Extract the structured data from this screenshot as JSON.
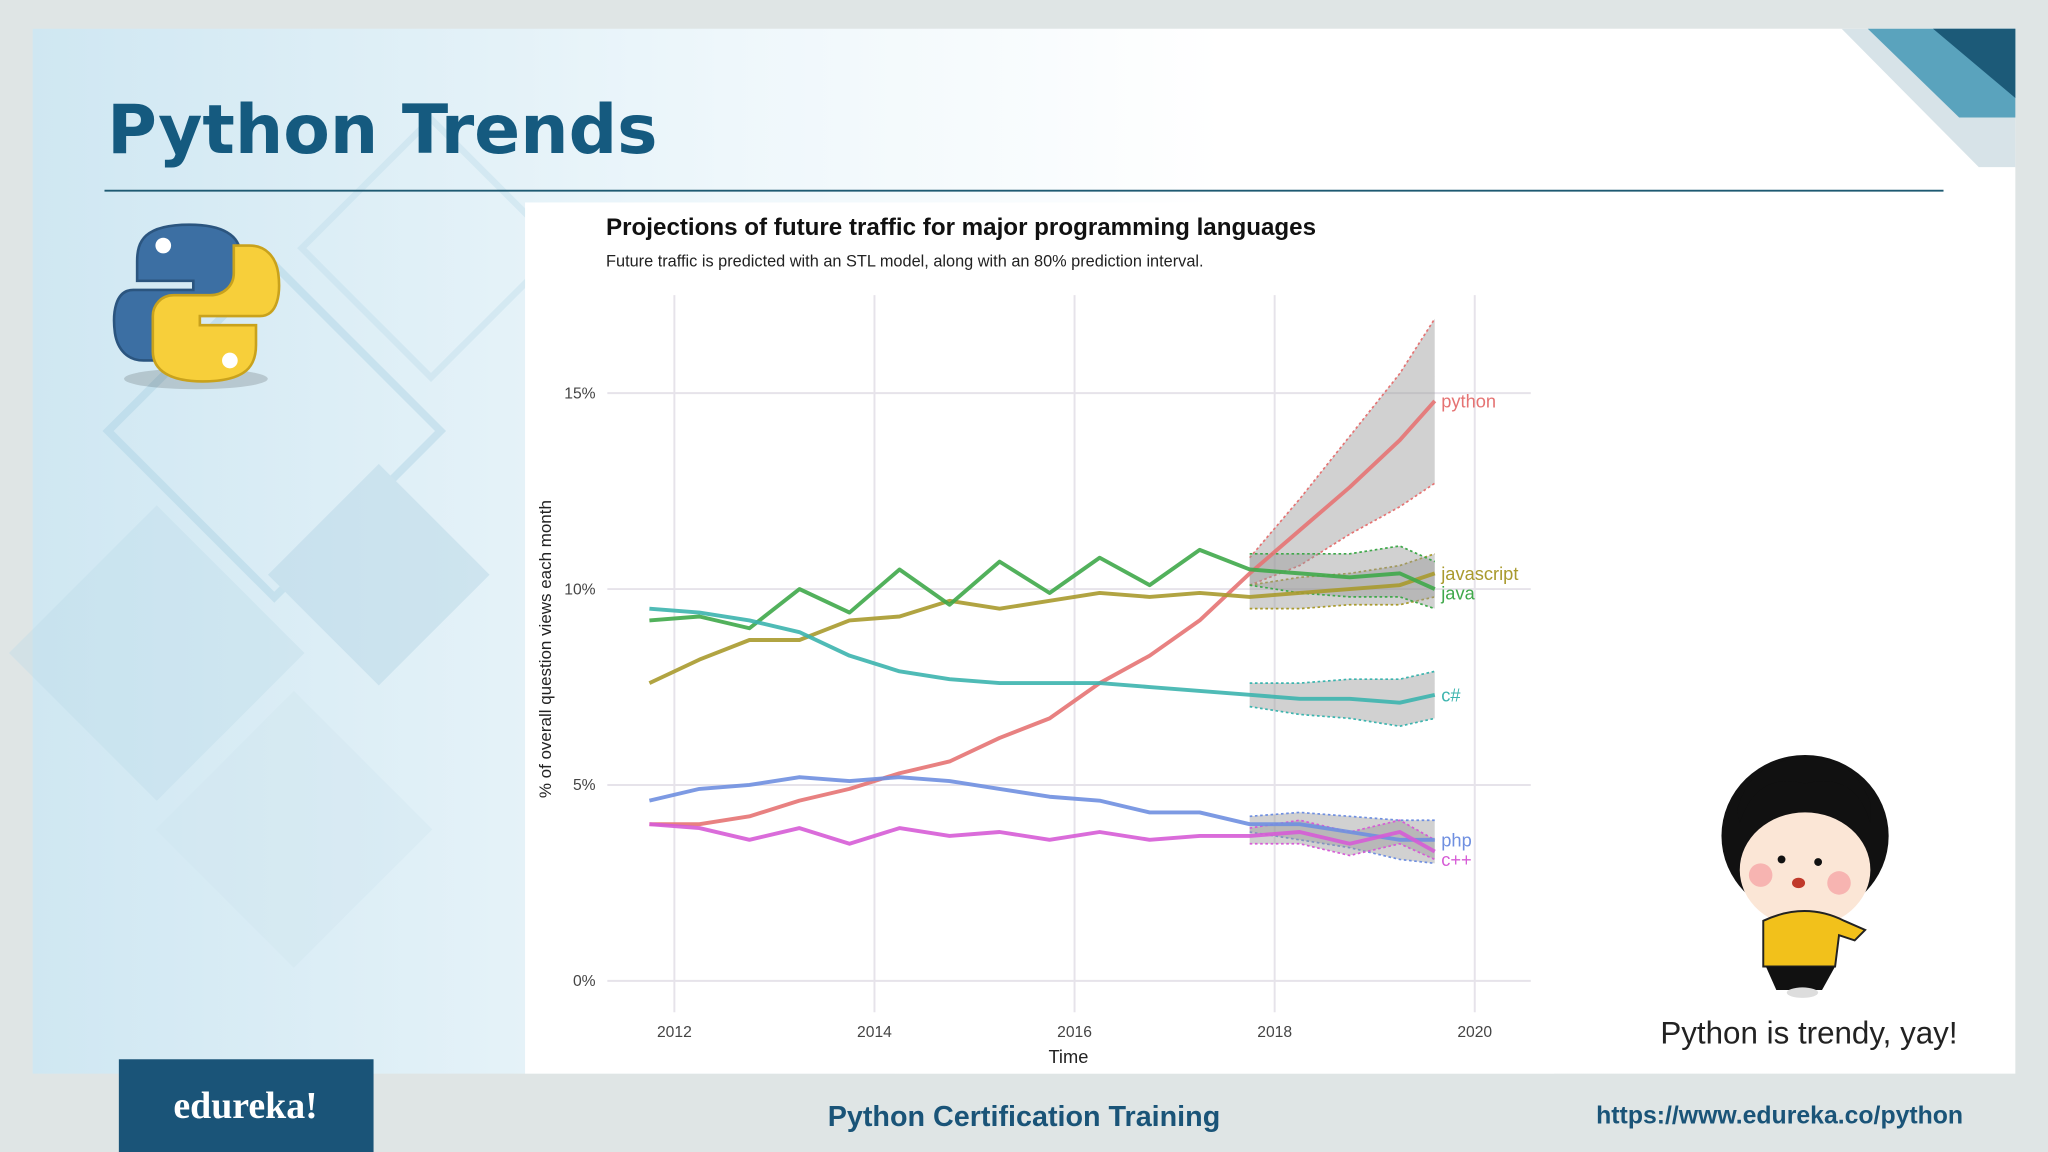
{
  "slide": {
    "title": "Python Trends",
    "caption": "Python is trendy, yay!",
    "logo": "edureka!",
    "footer": "Python Certification Training",
    "url": "https://www.edureka.co/python"
  },
  "chart_data": {
    "type": "line",
    "title": "Projections of future traffic for major programming languages",
    "subtitle": "Future traffic is predicted with an STL model, along with an 80% prediction interval.",
    "xlabel": "Time",
    "ylabel": "% of overall question views each month",
    "x": [
      2011.75,
      2012.25,
      2012.75,
      2013.25,
      2013.75,
      2014.25,
      2014.75,
      2015.25,
      2015.75,
      2016.25,
      2016.75,
      2017.25,
      2017.75,
      2018.25,
      2018.75,
      2019.25,
      2019.6
    ],
    "forecast_x": [
      2017.75,
      2018.25,
      2018.75,
      2019.25,
      2019.6
    ],
    "xlim": [
      2011.33,
      2020.56
    ],
    "xticks": [
      2012,
      2014,
      2016,
      2018,
      2020
    ],
    "ylim": [
      -0.3,
      17.5
    ],
    "yticks": [
      {
        "value": 0,
        "label": "0%"
      },
      {
        "value": 5,
        "label": "5%"
      },
      {
        "value": 10,
        "label": "10%"
      },
      {
        "value": 15,
        "label": "15%"
      }
    ],
    "grid": true,
    "series": [
      {
        "name": "python",
        "color": "#e57373",
        "values": [
          4.0,
          4.0,
          4.2,
          4.6,
          4.9,
          5.3,
          5.6,
          6.2,
          6.7,
          7.6,
          8.3,
          9.2,
          10.4,
          11.5,
          12.6,
          13.8,
          14.8
        ],
        "lower": [
          10.1,
          10.6,
          11.4,
          12.1,
          12.7
        ],
        "upper": [
          10.8,
          12.3,
          13.9,
          15.5,
          16.9
        ]
      },
      {
        "name": "javascript",
        "color": "#a99a2e",
        "values": [
          7.6,
          8.2,
          8.7,
          8.7,
          9.2,
          9.3,
          9.7,
          9.5,
          9.7,
          9.9,
          9.8,
          9.9,
          9.8,
          9.9,
          10.0,
          10.1,
          10.4
        ],
        "lower": [
          9.5,
          9.5,
          9.6,
          9.6,
          9.8
        ],
        "upper": [
          10.1,
          10.3,
          10.4,
          10.6,
          10.9
        ]
      },
      {
        "name": "java",
        "color": "#3fa84a",
        "values": [
          9.2,
          9.3,
          9.0,
          10.0,
          9.4,
          10.5,
          9.6,
          10.7,
          9.9,
          10.8,
          10.1,
          11.0,
          10.5,
          10.4,
          10.3,
          10.4,
          10.0
        ],
        "lower": [
          10.1,
          9.9,
          9.8,
          9.8,
          9.5
        ],
        "upper": [
          10.9,
          10.9,
          10.9,
          11.1,
          10.7
        ]
      },
      {
        "name": "c#",
        "color": "#3cb4ae",
        "values": [
          9.5,
          9.4,
          9.2,
          8.9,
          8.3,
          7.9,
          7.7,
          7.6,
          7.6,
          7.6,
          7.5,
          7.4,
          7.3,
          7.2,
          7.2,
          7.1,
          7.3
        ],
        "lower": [
          7.0,
          6.8,
          6.7,
          6.5,
          6.7
        ],
        "upper": [
          7.6,
          7.6,
          7.7,
          7.7,
          7.9
        ]
      },
      {
        "name": "php",
        "color": "#6f8fe0",
        "values": [
          4.6,
          4.9,
          5.0,
          5.2,
          5.1,
          5.2,
          5.1,
          4.9,
          4.7,
          4.6,
          4.3,
          4.3,
          4.0,
          4.0,
          3.8,
          3.6,
          3.6
        ],
        "lower": [
          3.8,
          3.6,
          3.4,
          3.1,
          3.0
        ],
        "upper": [
          4.2,
          4.3,
          4.2,
          4.1,
          4.1
        ]
      },
      {
        "name": "c++",
        "color": "#d65cd6",
        "values": [
          4.0,
          3.9,
          3.6,
          3.9,
          3.5,
          3.9,
          3.7,
          3.8,
          3.6,
          3.8,
          3.6,
          3.7,
          3.7,
          3.8,
          3.5,
          3.8,
          3.3
        ],
        "lower": [
          3.5,
          3.5,
          3.2,
          3.5,
          3.1
        ],
        "upper": [
          3.9,
          4.1,
          3.8,
          4.1,
          3.6
        ]
      }
    ]
  }
}
